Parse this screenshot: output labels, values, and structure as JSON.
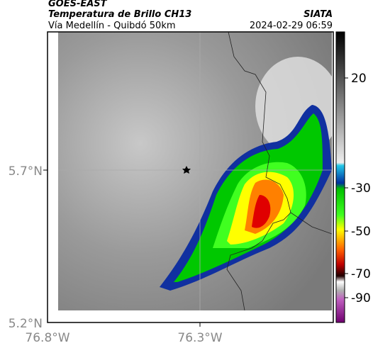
{
  "header": {
    "source": "GOES-EAST",
    "title": "Temperatura de Brillo CH13",
    "subtitle": "Vía Medellín - Quibdó 50km",
    "organization": "SIATA",
    "datetime": "2024-02-29 06:59"
  },
  "map": {
    "lat_labels": [
      "5.7°N",
      "5.2°N"
    ],
    "lon_labels": [
      "76.8°W",
      "76.3°W"
    ]
  },
  "colorbar": {
    "ticks": [
      20,
      -30,
      -50,
      -70,
      -90
    ]
  }
}
